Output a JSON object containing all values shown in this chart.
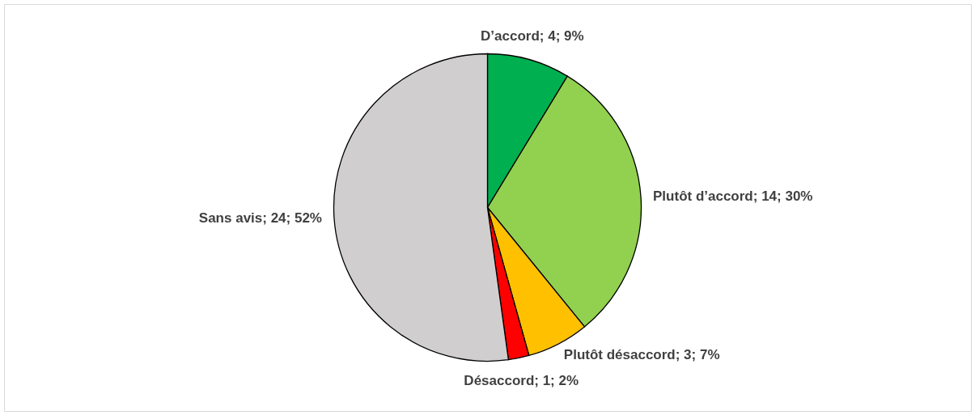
{
  "chart_data": {
    "type": "pie",
    "categories": [
      "D’accord",
      "Plutôt d’accord",
      "Plutôt désaccord",
      "Désaccord",
      "Sans avis"
    ],
    "values": [
      4,
      14,
      3,
      1,
      24
    ],
    "value_labels": [
      "4; 9%",
      "14; 30%",
      "3; 7%",
      "1; 2%",
      "24; 52%"
    ],
    "colors": [
      "#00b050",
      "#92d050",
      "#ffc000",
      "#ff0000",
      "#d0cece"
    ]
  }
}
